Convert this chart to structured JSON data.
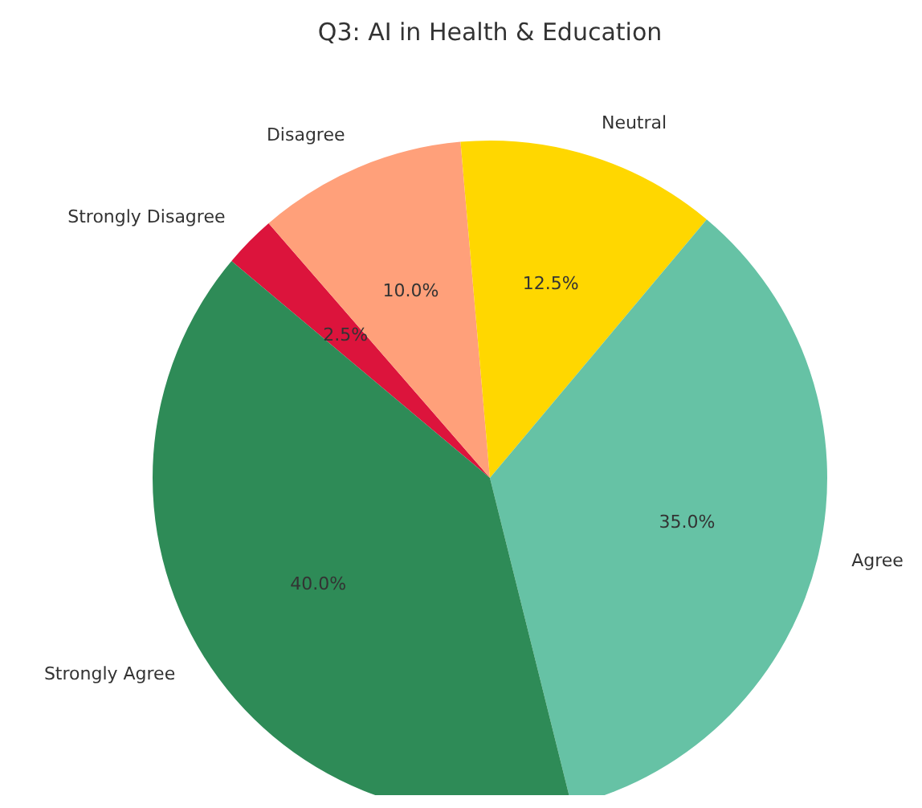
{
  "chart_data": {
    "type": "pie",
    "title": "Q3: AI in Health & Education",
    "categories": [
      "Strongly Disagree",
      "Disagree",
      "Neutral",
      "Agree",
      "Strongly Agree"
    ],
    "values": [
      2.5,
      10,
      12.5,
      35,
      40
    ],
    "colors": [
      "#dc143c",
      "#ffa07a",
      "#ffd700",
      "#66c2a5",
      "#2e8b57"
    ],
    "value_labels": [
      "2.5%",
      "10.0%",
      "12.5%",
      "35.0%",
      "40.0%"
    ],
    "legend": false
  }
}
